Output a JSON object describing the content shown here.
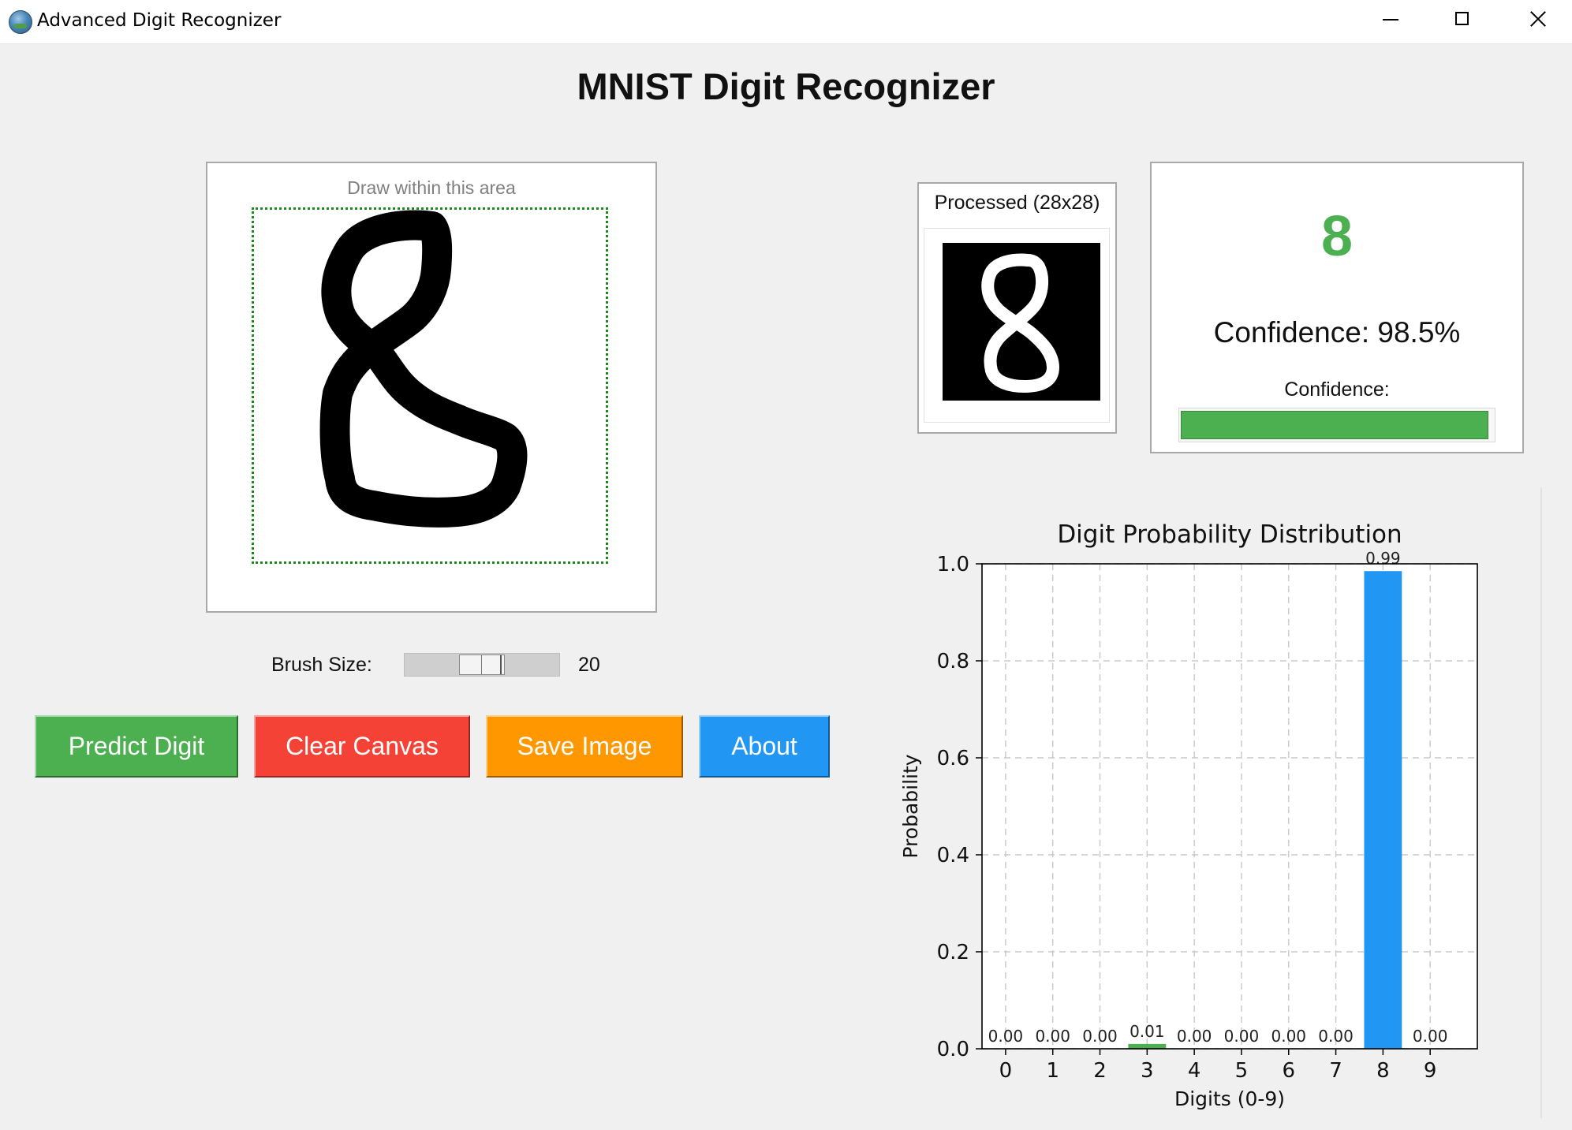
{
  "window": {
    "title": "Advanced Digit Recognizer",
    "controls": [
      "minimize",
      "maximize",
      "close"
    ]
  },
  "header": {
    "title": "MNIST Digit Recognizer"
  },
  "canvas": {
    "hint": "Draw within this area",
    "stroke_color": "#000000",
    "guide_color": "#1a8a1a"
  },
  "brush": {
    "label": "Brush Size:",
    "value": "20"
  },
  "buttons": {
    "predict": "Predict Digit",
    "clear": "Clear Canvas",
    "save": "Save Image",
    "about": "About"
  },
  "colors": {
    "predict": "#4caf50",
    "clear": "#f44336",
    "save": "#ff9800",
    "about": "#2196f3"
  },
  "processed": {
    "label": "Processed (28x28)"
  },
  "result": {
    "digit": "8",
    "confidence_text": "Confidence: 98.5%",
    "confidence_label": "Confidence:",
    "confidence_fraction": 0.985
  },
  "chart_data": {
    "type": "bar",
    "title": "Digit Probability Distribution",
    "xlabel": "Digits (0-9)",
    "ylabel": "Probability",
    "categories": [
      "0",
      "1",
      "2",
      "3",
      "4",
      "5",
      "6",
      "7",
      "8",
      "9"
    ],
    "values": [
      0.0,
      0.0,
      0.0,
      0.01,
      0.0,
      0.0,
      0.0,
      0.0,
      0.985,
      0.0
    ],
    "value_labels": [
      "0.00",
      "0.00",
      "0.00",
      "0.01",
      "0.00",
      "0.00",
      "0.00",
      "0.00",
      "0.99",
      "0.00"
    ],
    "ylim": [
      0,
      1.0
    ],
    "yticks": [
      "0.0",
      "0.2",
      "0.4",
      "0.6",
      "0.8",
      "1.0"
    ],
    "grid": true,
    "bar_colors": {
      "default": "#4caf50",
      "predicted": "#2196f3"
    },
    "predicted_index": 8
  }
}
